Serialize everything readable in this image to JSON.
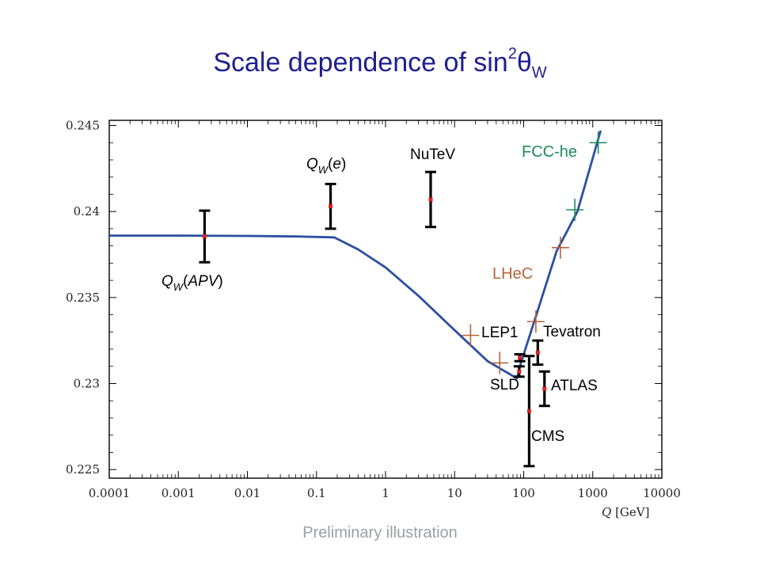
{
  "title": {
    "main": "Scale dependence of  sin",
    "sup": "2",
    "theta": "θ",
    "sub": "W"
  },
  "footer": "Preliminary illustration",
  "colors": {
    "curve": "#2b4fa0",
    "points": "#e02020",
    "lhec": "#b5643a",
    "fcche": "#1e8a5a",
    "title": "#1f1f8f"
  },
  "chart_data": {
    "type": "scatter",
    "title": "Scale dependence of sin²θW",
    "xlabel": "Q [GeV]",
    "ylabel": "",
    "xscale": "log",
    "xlim": [
      0.0001,
      10000
    ],
    "ylim": [
      0.2245,
      0.2453
    ],
    "x_ticks": [
      "0.0001",
      "0.001",
      "0.01",
      "0.1",
      "1",
      "10",
      "100",
      "1000",
      "10000"
    ],
    "y_ticks": [
      "0.225",
      "0.23",
      "0.235",
      "0.24",
      "0.245"
    ],
    "curve": {
      "x": [
        0.0001,
        0.001,
        0.01,
        0.05,
        0.18,
        0.4,
        1.0,
        3.0,
        10.0,
        30.0,
        80.0,
        91.19,
        150,
        300,
        600,
        1300
      ],
      "y": [
        0.2386,
        0.2386,
        0.23858,
        0.23855,
        0.2385,
        0.2378,
        0.23675,
        0.2351,
        0.2331,
        0.2313,
        0.2303,
        0.2312,
        0.2339,
        0.2377,
        0.24,
        0.2447
      ]
    },
    "measurements": [
      {
        "name": "Q_W(APV)",
        "x": 0.0024,
        "y": 0.23855,
        "err": 0.0015
      },
      {
        "name": "Q_W(e)",
        "x": 0.16,
        "y": 0.2403,
        "err": 0.0013
      },
      {
        "name": "NuTeV",
        "x": 4.5,
        "y": 0.2407,
        "err": 0.0016
      },
      {
        "name": "LEP1",
        "x": 88,
        "y": 0.2315,
        "err": 0.0002
      },
      {
        "name": "SLD",
        "x": 86,
        "y": 0.2307,
        "err": 0.0003
      },
      {
        "name": "Tevatron",
        "x": 160,
        "y": 0.2318,
        "err": 0.0007
      },
      {
        "name": "ATLAS",
        "x": 200,
        "y": 0.2297,
        "err": 0.001
      },
      {
        "name": "CMS",
        "x": 120,
        "y": 0.2284,
        "err": 0.0032
      }
    ],
    "projections": [
      {
        "name": "LHeC",
        "points": [
          {
            "x": 17,
            "y": 0.2328
          },
          {
            "x": 45,
            "y": 0.2312
          },
          {
            "x": 150,
            "y": 0.2336
          },
          {
            "x": 340,
            "y": 0.2379
          }
        ]
      },
      {
        "name": "FCC-he",
        "points": [
          {
            "x": 550,
            "y": 0.2401
          },
          {
            "x": 1200,
            "y": 0.244
          }
        ]
      }
    ],
    "labels": [
      {
        "text": "Q",
        "sub": "W",
        "paren": "(APV)",
        "target": "Q_W(APV)"
      },
      {
        "text": "Q",
        "sub": "W",
        "paren": "(e)",
        "target": "Q_W(e)"
      },
      {
        "text": "NuTeV"
      },
      {
        "text": "LEP1"
      },
      {
        "text": "Tevatron"
      },
      {
        "text": "SLD"
      },
      {
        "text": "ATLAS"
      },
      {
        "text": "CMS"
      },
      {
        "text": "LHeC"
      },
      {
        "text": "FCC-he"
      }
    ]
  }
}
